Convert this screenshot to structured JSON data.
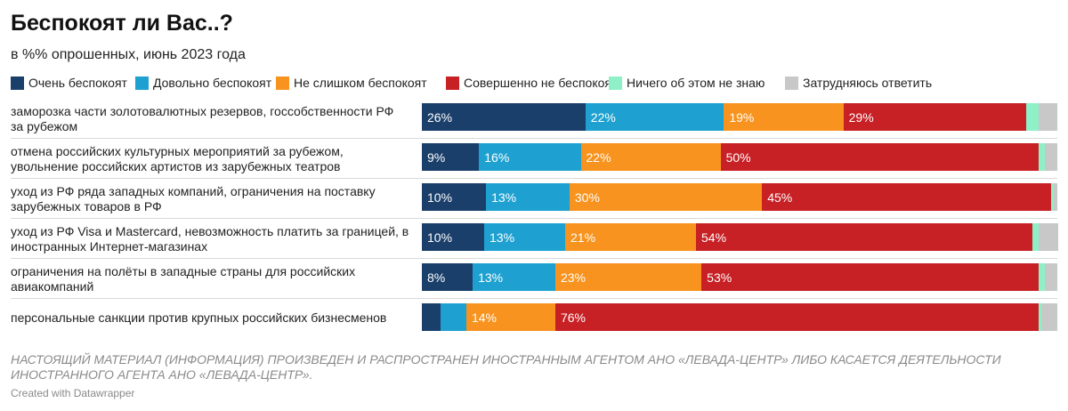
{
  "title": "Беспокоят ли Вас..?",
  "subtitle": "в %% опрошенных, июнь 2023 года",
  "chart_data": {
    "type": "bar",
    "orientation": "horizontal",
    "stacked": true,
    "title": "Беспокоят ли Вас..?",
    "subtitle": "в %% опрошенных, июнь 2023 года",
    "xlim": [
      0,
      100
    ],
    "categories": [
      "заморозка части золотовалютных резервов, госсобственности РФ за рубежом",
      "отмена российских культурных мероприятий за рубежом, увольнение российских артистов из зарубежных театров",
      "уход из РФ ряда западных компаний, ограничения на поставку зарубежных товаров в РФ",
      "уход из РФ Visa и Mastercard, невозможность платить за границей, в иностранных Интернет-магазинах",
      "ограничения на полёты в западные страны для российских авиакомпаний",
      "персональные санкции против крупных российских бизнесменов"
    ],
    "series": [
      {
        "name": "Очень беспокоят",
        "color": "#1a3f6b",
        "values": [
          26,
          9,
          10,
          10,
          8,
          3
        ]
      },
      {
        "name": "Довольно беспокоят",
        "color": "#1ea1d0",
        "values": [
          22,
          16,
          13,
          13,
          13,
          4
        ]
      },
      {
        "name": "Не слишком беспокоят",
        "color": "#f7931e",
        "values": [
          19,
          22,
          30,
          21,
          23,
          14
        ]
      },
      {
        "name": "Совершенно не беспокоят",
        "color": "#c72025",
        "values": [
          29,
          50,
          45,
          54,
          53,
          76
        ]
      },
      {
        "name": "Ничего об этом не знаю",
        "color": "#8ff0c8",
        "values": [
          2,
          1,
          0.5,
          1,
          1,
          0.5
        ]
      },
      {
        "name": "Затрудняюсь ответить",
        "color": "#c8c8c8",
        "values": [
          3,
          2,
          0.5,
          3,
          2,
          2.5
        ]
      }
    ],
    "data_labels": [
      [
        "26%",
        "22%",
        "19%",
        "29%",
        "",
        ""
      ],
      [
        "9%",
        "16%",
        "22%",
        "50%",
        "",
        ""
      ],
      [
        "10%",
        "13%",
        "30%",
        "45%",
        "",
        ""
      ],
      [
        "10%",
        "13%",
        "21%",
        "54%",
        "",
        ""
      ],
      [
        "8%",
        "13%",
        "23%",
        "53%",
        "",
        ""
      ],
      [
        "",
        "",
        "14%",
        "76%",
        "",
        ""
      ]
    ],
    "label_colors": [
      "#ffffff",
      "#ffffff",
      "#ffffff",
      "#ffffff",
      "#ffffff",
      "#ffffff"
    ],
    "legend_position": "top",
    "grid": false
  },
  "footnote": "НАСТОЯЩИЙ МАТЕРИАЛ (ИНФОРМАЦИЯ) ПРОИЗВЕДЕН И РАСПРОСТРАНЕН ИНОСТРАННЫМ АГЕНТОМ АНО «ЛЕВАДА-ЦЕНТР» ЛИБО КАСАЕТСЯ ДЕЯТЕЛЬНОСТИ ИНОСТРАННОГО АГЕНТА АНО «ЛЕВАДА-ЦЕНТР».",
  "credit": "Created with Datawrapper"
}
